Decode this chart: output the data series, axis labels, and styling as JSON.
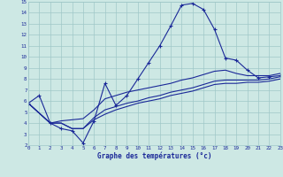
{
  "title": "Graphe des températures (°c)",
  "bg_color": "#cde8e4",
  "grid_color": "#a0c8c8",
  "line_color": "#1a2898",
  "xlim_min": 0,
  "xlim_max": 23,
  "ylim_min": 2,
  "ylim_max": 15,
  "xticks": [
    0,
    1,
    2,
    3,
    4,
    5,
    6,
    7,
    8,
    9,
    10,
    11,
    12,
    13,
    14,
    15,
    16,
    17,
    18,
    19,
    20,
    21,
    22,
    23
  ],
  "yticks": [
    2,
    3,
    4,
    5,
    6,
    7,
    8,
    9,
    10,
    11,
    12,
    13,
    14,
    15
  ],
  "curve1_x": [
    0,
    1,
    2,
    3,
    4,
    5,
    6,
    7,
    8,
    9,
    10,
    11,
    12,
    13,
    14,
    15,
    16,
    17,
    18,
    19,
    20,
    21,
    22,
    23
  ],
  "curve1_y": [
    5.8,
    6.5,
    4.0,
    3.5,
    3.3,
    2.2,
    4.2,
    7.6,
    5.6,
    6.5,
    8.0,
    9.5,
    11.0,
    12.8,
    14.7,
    14.85,
    14.3,
    12.5,
    9.9,
    9.7,
    8.8,
    8.1,
    8.2,
    8.3
  ],
  "curve2_x": [
    0,
    2,
    3,
    4,
    5,
    6,
    7,
    8,
    9,
    10,
    11,
    12,
    13,
    14,
    15,
    16,
    17,
    18,
    19,
    20,
    21,
    22,
    23
  ],
  "curve2_y": [
    5.8,
    4.0,
    4.2,
    4.3,
    4.4,
    5.2,
    6.2,
    6.5,
    6.8,
    7.0,
    7.2,
    7.4,
    7.6,
    7.9,
    8.1,
    8.4,
    8.7,
    8.8,
    8.5,
    8.3,
    8.3,
    8.3,
    8.5
  ],
  "curve3_x": [
    0,
    2,
    3,
    4,
    5,
    6,
    7,
    8,
    9,
    10,
    11,
    12,
    13,
    14,
    15,
    16,
    17,
    18,
    19,
    20,
    21,
    22,
    23
  ],
  "curve3_y": [
    5.8,
    4.0,
    4.0,
    3.5,
    3.5,
    4.5,
    5.2,
    5.5,
    5.8,
    6.0,
    6.3,
    6.5,
    6.8,
    7.0,
    7.2,
    7.5,
    7.8,
    7.9,
    7.9,
    7.9,
    7.9,
    8.0,
    8.2
  ],
  "curve4_x": [
    0,
    2,
    3,
    4,
    5,
    6,
    7,
    8,
    9,
    10,
    11,
    12,
    13,
    14,
    15,
    16,
    17,
    18,
    19,
    20,
    21,
    22,
    23
  ],
  "curve4_y": [
    5.8,
    4.0,
    4.0,
    3.5,
    3.5,
    4.3,
    4.8,
    5.2,
    5.5,
    5.8,
    6.0,
    6.2,
    6.5,
    6.7,
    6.9,
    7.2,
    7.5,
    7.6,
    7.6,
    7.7,
    7.7,
    7.8,
    8.0
  ]
}
